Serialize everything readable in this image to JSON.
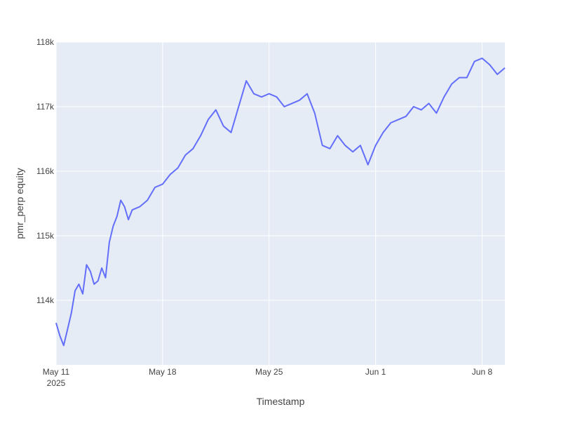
{
  "colors": {
    "plot_bg": "#e5ecf6",
    "grid": "#ffffff",
    "line": "#636efa",
    "text": "#444444"
  },
  "chart_data": {
    "type": "line",
    "title": "",
    "xlabel": "Timestamp",
    "ylabel": "pmr_perp equity",
    "grid": true,
    "xlim": [
      "2025-05-11",
      "2025-06-09 12:00"
    ],
    "ylim": [
      113000,
      118000
    ],
    "x_ticks": [
      {
        "date": "2025-05-11",
        "label": "May 11",
        "sublabel": "2025"
      },
      {
        "date": "2025-05-18",
        "label": "May 18",
        "sublabel": ""
      },
      {
        "date": "2025-05-25",
        "label": "May 25",
        "sublabel": ""
      },
      {
        "date": "2025-06-01",
        "label": "Jun 1",
        "sublabel": ""
      },
      {
        "date": "2025-06-08",
        "label": "Jun 8",
        "sublabel": ""
      }
    ],
    "y_ticks": [
      {
        "value": 114000,
        "label": "114k"
      },
      {
        "value": 115000,
        "label": "115k"
      },
      {
        "value": 116000,
        "label": "116k"
      },
      {
        "value": 117000,
        "label": "117k"
      },
      {
        "value": 118000,
        "label": "118k"
      }
    ],
    "series": [
      {
        "name": "",
        "x": [
          "2025-05-11 00:00",
          "2025-05-11 06:00",
          "2025-05-11 12:00",
          "2025-05-11 18:00",
          "2025-05-12 00:00",
          "2025-05-12 06:00",
          "2025-05-12 12:00",
          "2025-05-12 18:00",
          "2025-05-13 00:00",
          "2025-05-13 06:00",
          "2025-05-13 12:00",
          "2025-05-13 18:00",
          "2025-05-14 00:00",
          "2025-05-14 06:00",
          "2025-05-14 12:00",
          "2025-05-14 18:00",
          "2025-05-15 00:00",
          "2025-05-15 06:00",
          "2025-05-15 12:00",
          "2025-05-15 18:00",
          "2025-05-16 00:00",
          "2025-05-16 12:00",
          "2025-05-17 00:00",
          "2025-05-17 12:00",
          "2025-05-18 00:00",
          "2025-05-18 12:00",
          "2025-05-19 00:00",
          "2025-05-19 12:00",
          "2025-05-20 00:00",
          "2025-05-20 12:00",
          "2025-05-21 00:00",
          "2025-05-21 12:00",
          "2025-05-22 00:00",
          "2025-05-22 12:00",
          "2025-05-23 00:00",
          "2025-05-23 12:00",
          "2025-05-24 00:00",
          "2025-05-24 12:00",
          "2025-05-25 00:00",
          "2025-05-25 12:00",
          "2025-05-26 00:00",
          "2025-05-26 12:00",
          "2025-05-27 00:00",
          "2025-05-27 12:00",
          "2025-05-28 00:00",
          "2025-05-28 12:00",
          "2025-05-29 00:00",
          "2025-05-29 12:00",
          "2025-05-30 00:00",
          "2025-05-30 12:00",
          "2025-05-31 00:00",
          "2025-05-31 12:00",
          "2025-06-01 00:00",
          "2025-06-01 12:00",
          "2025-06-02 00:00",
          "2025-06-02 12:00",
          "2025-06-03 00:00",
          "2025-06-03 12:00",
          "2025-06-04 00:00",
          "2025-06-04 12:00",
          "2025-06-05 00:00",
          "2025-06-05 12:00",
          "2025-06-06 00:00",
          "2025-06-06 12:00",
          "2025-06-07 00:00",
          "2025-06-07 12:00",
          "2025-06-08 00:00",
          "2025-06-08 12:00",
          "2025-06-09 00:00",
          "2025-06-09 12:00"
        ],
        "values": [
          113650,
          113450,
          113300,
          113550,
          113800,
          114150,
          114250,
          114100,
          114550,
          114450,
          114250,
          114300,
          114500,
          114350,
          114900,
          115150,
          115300,
          115550,
          115450,
          115250,
          115400,
          115450,
          115550,
          115750,
          115800,
          115950,
          116050,
          116250,
          116350,
          116550,
          116800,
          116950,
          116700,
          116600,
          117000,
          117400,
          117200,
          117150,
          117200,
          117150,
          117000,
          117050,
          117100,
          117200,
          116900,
          116400,
          116350,
          116550,
          116400,
          116300,
          116400,
          116100,
          116400,
          116600,
          116750,
          116800,
          116850,
          117000,
          116950,
          117050,
          116900,
          117150,
          117350,
          117450,
          117450,
          117700,
          117750,
          117650,
          117500,
          117600
        ]
      }
    ]
  }
}
